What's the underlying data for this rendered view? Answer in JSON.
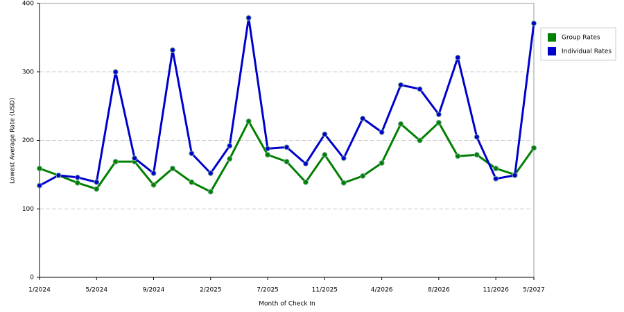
{
  "chart_data": {
    "type": "line",
    "x_label": "Month of Check In",
    "y_label": "Lowest Average Rate (USD)",
    "categories": [
      "1/2024",
      null,
      null,
      "5/2024",
      null,
      null,
      "9/2024",
      null,
      null,
      "2/2025",
      null,
      null,
      "7/2025",
      null,
      null,
      "11/2025",
      null,
      null,
      "4/2026",
      null,
      null,
      "8/2026",
      null,
      null,
      "11/2026",
      null,
      "5/2027"
    ],
    "series": [
      {
        "name": "Group Rates",
        "color": "#008000",
        "values": [
          159,
          149,
          138,
          129,
          169,
          169,
          135,
          159,
          139,
          125,
          173,
          228,
          179,
          169,
          139,
          179,
          138,
          148,
          167,
          224,
          200,
          226,
          177,
          179,
          159,
          150,
          189
        ]
      },
      {
        "name": "Individual Rates",
        "color": "#0000cc",
        "values": [
          134,
          149,
          146,
          139,
          300,
          174,
          152,
          332,
          181,
          152,
          192,
          379,
          188,
          190,
          166,
          209,
          174,
          232,
          212,
          281,
          275,
          238,
          321,
          205,
          144,
          149,
          371
        ]
      }
    ],
    "ylim": [
      0,
      400
    ],
    "yticks": [
      0,
      100,
      200,
      300,
      400
    ],
    "grid": true,
    "legend": "right"
  }
}
